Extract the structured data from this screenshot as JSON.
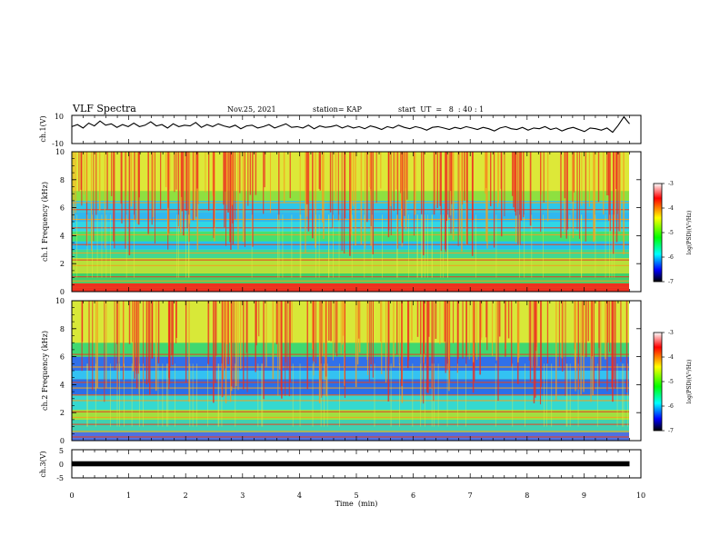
{
  "header": {
    "title": "VLF Spectra",
    "date": "Nov.25, 2021",
    "station": "station= KAP",
    "start": "start  UT  =   8  : 40 : 1"
  },
  "chart_data": [
    {
      "type": "line",
      "panel": "ch1-waveform",
      "ylabel": "ch.1(V)",
      "ylim": [
        -10,
        10
      ],
      "yticks": [
        -10,
        10
      ],
      "xlim": [
        0,
        10
      ],
      "series": [
        {
          "values": [
            2.0,
            3.5,
            1.0,
            4.5,
            2.5,
            6.0,
            3.0,
            4.0,
            1.5,
            3.5,
            2.0,
            4.5,
            2.0,
            3.0,
            5.5,
            2.5,
            3.5,
            1.0,
            4.0,
            2.0,
            3.0,
            2.5,
            5.0,
            1.5,
            3.5,
            2.0,
            4.0,
            2.5,
            1.5,
            3.0,
            0.5,
            2.5,
            3.0,
            1.0,
            2.0,
            3.5,
            1.0,
            2.5,
            4.0,
            1.5,
            2.0,
            1.0,
            3.0,
            0.5,
            2.5,
            1.5,
            2.0,
            3.0,
            1.0,
            2.5,
            1.0,
            2.0,
            0.5,
            2.5,
            1.5,
            0.0,
            2.0,
            1.0,
            3.0,
            1.5,
            0.5,
            2.0,
            1.0,
            -0.5,
            1.5,
            2.0,
            1.0,
            0.0,
            1.5,
            0.5,
            2.0,
            1.0,
            0.0,
            1.5,
            0.5,
            -1.0,
            1.0,
            2.0,
            0.5,
            0.0,
            1.5,
            -0.5,
            1.0,
            0.5,
            2.0,
            0.0,
            1.0,
            -1.0,
            0.5,
            1.5,
            0.0,
            -1.5,
            1.0,
            0.5,
            -0.5,
            1.0,
            -2.0,
            3.0,
            9.0,
            4.0
          ]
        }
      ]
    },
    {
      "type": "heatmap",
      "panel": "ch1-spectrogram",
      "ylabel": "ch.1 Frequency (kHz)",
      "ylim": [
        0,
        10
      ],
      "yticks": [
        0,
        2,
        4,
        6,
        8,
        10
      ],
      "xlim": [
        0,
        10
      ],
      "colorbar": {
        "label": "log(PSD)(V²/Hz)",
        "range": [
          -7,
          -3
        ],
        "ticks": [
          -3,
          -4,
          -5,
          -6,
          -7
        ]
      }
    },
    {
      "type": "heatmap",
      "panel": "ch2-spectrogram",
      "ylabel": "ch.2 Frequency (kHz)",
      "ylim": [
        0,
        10
      ],
      "yticks": [
        0,
        2,
        4,
        6,
        8,
        10
      ],
      "xlim": [
        0,
        10
      ],
      "colorbar": {
        "label": "log(PSD)(V²/Hz)",
        "range": [
          -7,
          -3
        ],
        "ticks": [
          -3,
          -4,
          -5,
          -6,
          -7
        ]
      }
    },
    {
      "type": "line",
      "panel": "ch3-signal",
      "ylabel": "ch.3(V)",
      "ylim": [
        -5,
        5
      ],
      "yticks": [
        -5,
        0,
        5
      ],
      "xlim": [
        0,
        9.8
      ],
      "xlabel": "Time  (min)",
      "xticks": [
        0,
        1,
        2,
        3,
        4,
        5,
        6,
        7,
        8,
        9,
        10
      ],
      "series": [
        {
          "values": [
            0,
            0
          ]
        }
      ]
    }
  ]
}
